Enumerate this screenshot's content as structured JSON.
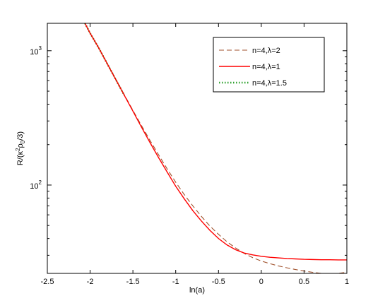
{
  "chart_data": {
    "type": "line",
    "title": "",
    "xlabel": "ln(a)",
    "ylabel": "R/(κ²ρ₀/3)",
    "ylabel_parts": {
      "a": "R/(",
      "b": "κ",
      "c": "2",
      "d": "ρ",
      "e": "0",
      "f": "/3)"
    },
    "xlim": [
      -2.5,
      1
    ],
    "ylim": [
      22,
      1600
    ],
    "yscale": "log",
    "grid": false,
    "legend_position": "top-right",
    "x_ticks": [
      -2.5,
      -2,
      -1.5,
      -1,
      -0.5,
      0,
      0.5,
      1
    ],
    "x_tick_labels": [
      "-2.5",
      "-2",
      "-1.5",
      "-1",
      "-0.5",
      "0",
      "0.5",
      "1"
    ],
    "y_major_ticks": [
      100,
      1000
    ],
    "y_tick_labels": [
      {
        "value": 100,
        "base": "10",
        "exp": "2"
      },
      {
        "value": 1000,
        "base": "10",
        "exp": "3"
      }
    ],
    "series": [
      {
        "name": "n=4,λ=2",
        "color": "#a0522d",
        "style": "dashed",
        "x": [
          -2.06,
          -2.0,
          -1.9,
          -1.8,
          -1.7,
          -1.6,
          -1.5,
          -1.4,
          -1.3,
          -1.2,
          -1.1,
          -1.0,
          -0.9,
          -0.8,
          -0.7,
          -0.6,
          -0.5,
          -0.4,
          -0.3,
          -0.2,
          -0.1,
          0.0,
          0.1,
          0.2,
          0.3,
          0.4,
          0.5,
          0.6,
          0.7,
          0.8,
          0.9,
          1.0
        ],
        "y": [
          1600,
          1350,
          1050,
          805,
          615,
          470,
          360,
          277,
          215,
          168,
          132,
          105,
          85,
          70,
          58.5,
          49.5,
          43,
          37.8,
          34,
          31,
          28.8,
          27.2,
          26,
          25,
          24.2,
          23.5,
          22.9,
          22.4,
          22.0,
          21.8,
          22.0,
          22.4
        ]
      },
      {
        "name": "n=4,λ=1",
        "color": "#ff0000",
        "style": "solid",
        "x": [
          -2.06,
          -2.0,
          -1.9,
          -1.8,
          -1.7,
          -1.6,
          -1.5,
          -1.4,
          -1.3,
          -1.2,
          -1.1,
          -1.0,
          -0.9,
          -0.8,
          -0.7,
          -0.6,
          -0.5,
          -0.4,
          -0.3,
          -0.2,
          -0.1,
          0.0,
          0.1,
          0.2,
          0.3,
          0.4,
          0.5,
          0.6,
          0.7,
          0.8,
          0.9,
          1.0
        ],
        "y": [
          1600,
          1350,
          1050,
          800,
          610,
          465,
          355,
          270,
          207,
          160,
          125,
          98,
          79,
          64.5,
          54,
          46,
          40,
          35.8,
          33,
          31.2,
          30.2,
          29.5,
          29.0,
          28.7,
          28.4,
          28.2,
          28.0,
          27.9,
          27.8,
          27.8,
          27.7,
          27.7
        ]
      },
      {
        "name": "n=4,λ=1.5",
        "color": "#2ca02c",
        "style": "dotted",
        "x": [
          -2.06,
          -2.0,
          -1.9,
          -1.8,
          -1.7,
          -1.6
        ],
        "y": [
          1600,
          1350,
          1050,
          800,
          610,
          465
        ]
      }
    ]
  }
}
